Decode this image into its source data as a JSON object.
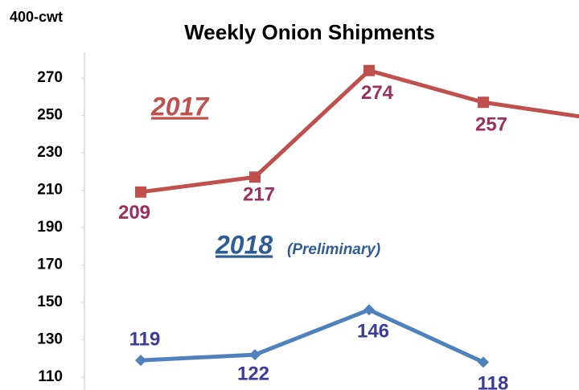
{
  "chart_data": {
    "type": "line",
    "title": "Weekly Onion Shipments",
    "y_label": "400-cwt",
    "categories": [
      null,
      null,
      null,
      null,
      null
    ],
    "series": [
      {
        "name": "2017",
        "color": "#c0504d",
        "label_color": "#9b2f5e",
        "marker": "square",
        "values": [
          209,
          217,
          274,
          257,
          248
        ]
      },
      {
        "name": "2018",
        "color": "#4f81bd",
        "label_color": "#3b3b9a",
        "marker": "diamond",
        "values": [
          119,
          122,
          146,
          118,
          null
        ]
      }
    ],
    "annotations": [
      "(Preliminary)"
    ],
    "ylim": [
      110,
      270
    ],
    "yticks": [
      110,
      130,
      150,
      170,
      190,
      210,
      230,
      250,
      270
    ],
    "grid": false
  }
}
